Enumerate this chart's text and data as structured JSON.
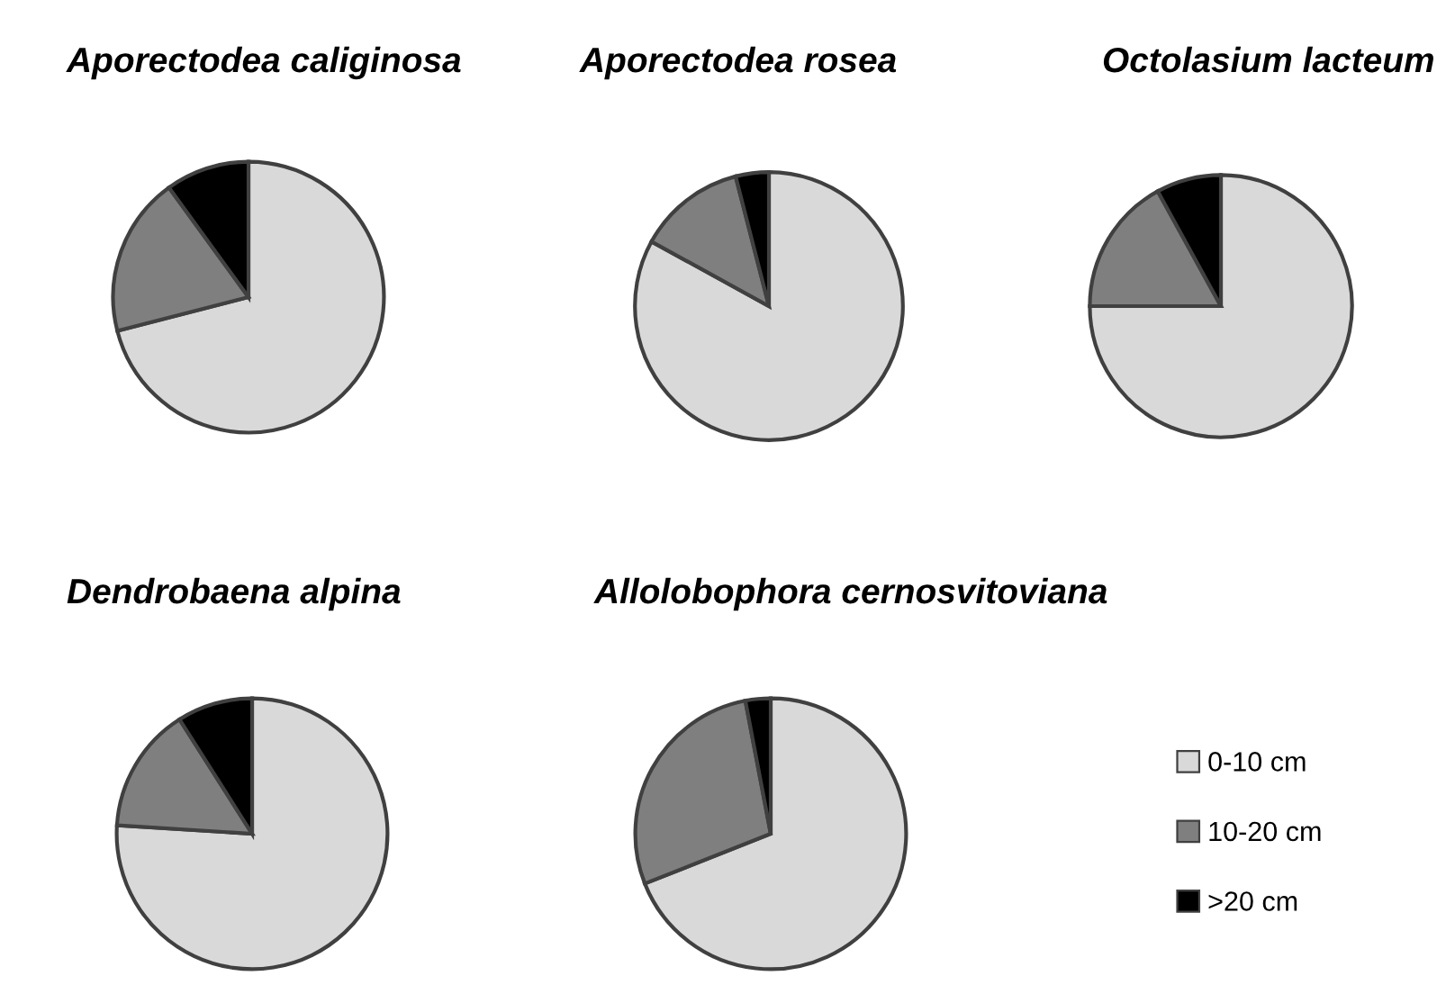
{
  "chart_data": [
    {
      "type": "pie",
      "title": "Aporectodea caliginosa",
      "categories": [
        "0-10 cm",
        "10-20 cm",
        ">20 cm"
      ],
      "values": [
        71,
        19,
        10
      ],
      "colors": [
        "#d9d9d9",
        "#7f7f7f",
        "#000000"
      ],
      "legend": "bottom right"
    },
    {
      "type": "pie",
      "title": "Aporectodea rosea",
      "categories": [
        null,
        null,
        null
      ],
      "values": [
        83,
        13,
        4
      ],
      "colors": [
        "#d9d9d9",
        "#7f7f7f",
        "#000000"
      ]
    },
    {
      "type": "pie",
      "title": "Octolasium lacteum",
      "categories": [
        null,
        null,
        null
      ],
      "values": [
        75,
        17,
        8
      ],
      "colors": [
        "#d9d9d9",
        "#7f7f7f",
        "#000000"
      ]
    },
    {
      "type": "pie",
      "title": "Dendrobaena alpina",
      "categories": [
        null,
        null,
        null
      ],
      "values": [
        76,
        15,
        9
      ],
      "colors": [
        "#d9d9d9",
        "#7f7f7f",
        "#000000"
      ]
    },
    {
      "type": "pie",
      "title": "Allolobophora cernosvitoviana",
      "categories": [
        null,
        null,
        null
      ],
      "values": [
        69,
        28,
        3
      ],
      "colors": [
        "#d9d9d9",
        "#7f7f7f",
        "#000000"
      ]
    }
  ]
}
